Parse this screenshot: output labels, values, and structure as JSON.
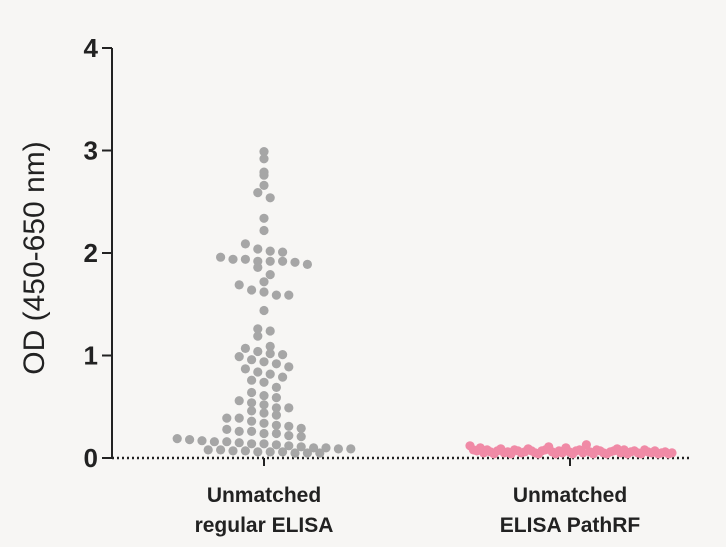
{
  "chart_data": {
    "type": "scatter",
    "subtype": "dot-plot",
    "ylabel": "OD (450-650 nm)",
    "ylim": [
      0,
      4
    ],
    "yticks": [
      "0",
      "1",
      "2",
      "3",
      "4"
    ],
    "grid": false,
    "categories": [
      {
        "line1": "Unmatched",
        "line2": "regular ELISA"
      },
      {
        "line1": "Unmatched",
        "line2": "ELISA PathRF"
      }
    ],
    "series": [
      {
        "category_index": 0,
        "color": "#a6a6a6",
        "values": [
          2.95,
          2.88,
          2.75,
          2.72,
          2.62,
          2.55,
          2.5,
          2.3,
          2.18,
          2.05,
          2.0,
          1.98,
          1.97,
          1.92,
          1.9,
          1.9,
          1.88,
          1.88,
          1.88,
          1.87,
          1.85,
          1.82,
          1.75,
          1.68,
          1.65,
          1.6,
          1.58,
          1.55,
          1.55,
          1.4,
          1.22,
          1.2,
          1.15,
          1.05,
          1.03,
          1.0,
          0.98,
          0.97,
          0.95,
          0.92,
          0.9,
          0.88,
          0.85,
          0.83,
          0.8,
          0.78,
          0.75,
          0.72,
          0.7,
          0.65,
          0.6,
          0.57,
          0.55,
          0.52,
          0.5,
          0.48,
          0.45,
          0.45,
          0.42,
          0.4,
          0.38,
          0.35,
          0.35,
          0.32,
          0.3,
          0.28,
          0.27,
          0.25,
          0.24,
          0.22,
          0.22,
          0.2,
          0.2,
          0.18,
          0.17,
          0.15,
          0.14,
          0.13,
          0.12,
          0.12,
          0.11,
          0.1,
          0.1,
          0.09,
          0.08,
          0.07,
          0.06,
          0.06,
          0.05,
          0.05,
          0.04,
          0.04,
          0.03,
          0.03,
          0.02,
          0.02,
          0.02,
          0.01,
          0.01,
          0.01
        ]
      },
      {
        "category_index": 1,
        "color": "#f08aa6",
        "values": [
          0.1,
          0.06,
          0.05,
          0.08,
          0.03,
          0.06,
          0.04,
          0.02,
          0.05,
          0.07,
          0.03,
          0.04,
          0.02,
          0.06,
          0.05,
          0.03,
          0.04,
          0.07,
          0.05,
          0.03,
          0.02,
          0.05,
          0.06,
          0.09,
          0.04,
          0.02,
          0.05,
          0.03,
          0.08,
          0.04,
          0.02,
          0.05,
          0.06,
          0.03,
          0.11,
          0.04,
          0.02,
          0.06,
          0.05,
          0.03,
          0.02,
          0.04,
          0.05,
          0.07,
          0.03,
          0.06,
          0.02,
          0.04,
          0.05,
          0.03,
          0.02,
          0.06,
          0.04,
          0.03,
          0.05,
          0.02,
          0.03,
          0.04,
          0.02,
          0.03
        ]
      }
    ]
  }
}
